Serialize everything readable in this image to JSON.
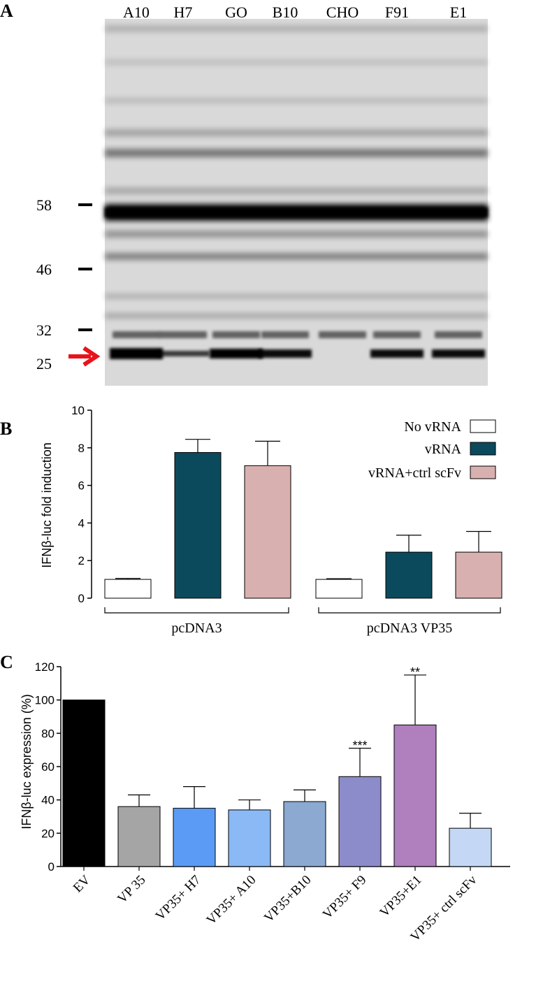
{
  "panels": {
    "a": "A",
    "b": "B",
    "c": "C"
  },
  "blot": {
    "lanes": [
      "A10",
      "H7",
      "GO",
      "B10",
      "CHO",
      "F91",
      "E1"
    ],
    "markers": [
      "58",
      "46",
      "32",
      "25"
    ],
    "arrow_color": "#e8141b"
  },
  "chart_data": [
    {
      "type": "bar",
      "ylabel": "IFNβ-luc fold induction",
      "ylim": [
        0,
        10
      ],
      "yticks": [
        "0",
        "2",
        "4",
        "6",
        "8",
        "10"
      ],
      "groups": [
        "pcDNA3",
        "pcDNA3 VP35"
      ],
      "series": [
        {
          "name": "No vRNA",
          "color": "#ffffff",
          "values": [
            1.0,
            1.0
          ],
          "errors": [
            0.05,
            0.0
          ]
        },
        {
          "name": "vRNA",
          "color": "#0b4a5c",
          "values": [
            7.75,
            2.45
          ],
          "errors": [
            0.7,
            0.9
          ]
        },
        {
          "name": "vRNA+ctrl scFv",
          "color": "#d9b0b0",
          "values": [
            7.05,
            2.45
          ],
          "errors": [
            1.3,
            1.1
          ]
        }
      ],
      "legend": "top-right"
    },
    {
      "type": "bar",
      "ylabel": "IFNβ-luc expression (%)",
      "ylim": [
        0,
        120
      ],
      "yticks": [
        "0",
        "20",
        "40",
        "60",
        "80",
        "100",
        "120"
      ],
      "categories": [
        "EV",
        "VP 35",
        "VP35+ H7",
        "VP35+ A10",
        "VP35+B10",
        "VP35+ F9",
        "VP35+E1",
        "VP35+ ctrl scFv"
      ],
      "values": [
        100,
        36,
        35,
        34,
        39,
        54,
        85,
        23
      ],
      "errors": [
        0,
        7,
        13,
        6,
        7,
        17,
        30,
        9
      ],
      "colors": [
        "#000000",
        "#a5a5a5",
        "#5b9bf5",
        "#8ab9f5",
        "#8ba9d1",
        "#8c8ccb",
        "#b07fbd",
        "#c4d8f5"
      ],
      "annotations": [
        "",
        "",
        "",
        "",
        "",
        "***",
        "**",
        ""
      ]
    }
  ]
}
